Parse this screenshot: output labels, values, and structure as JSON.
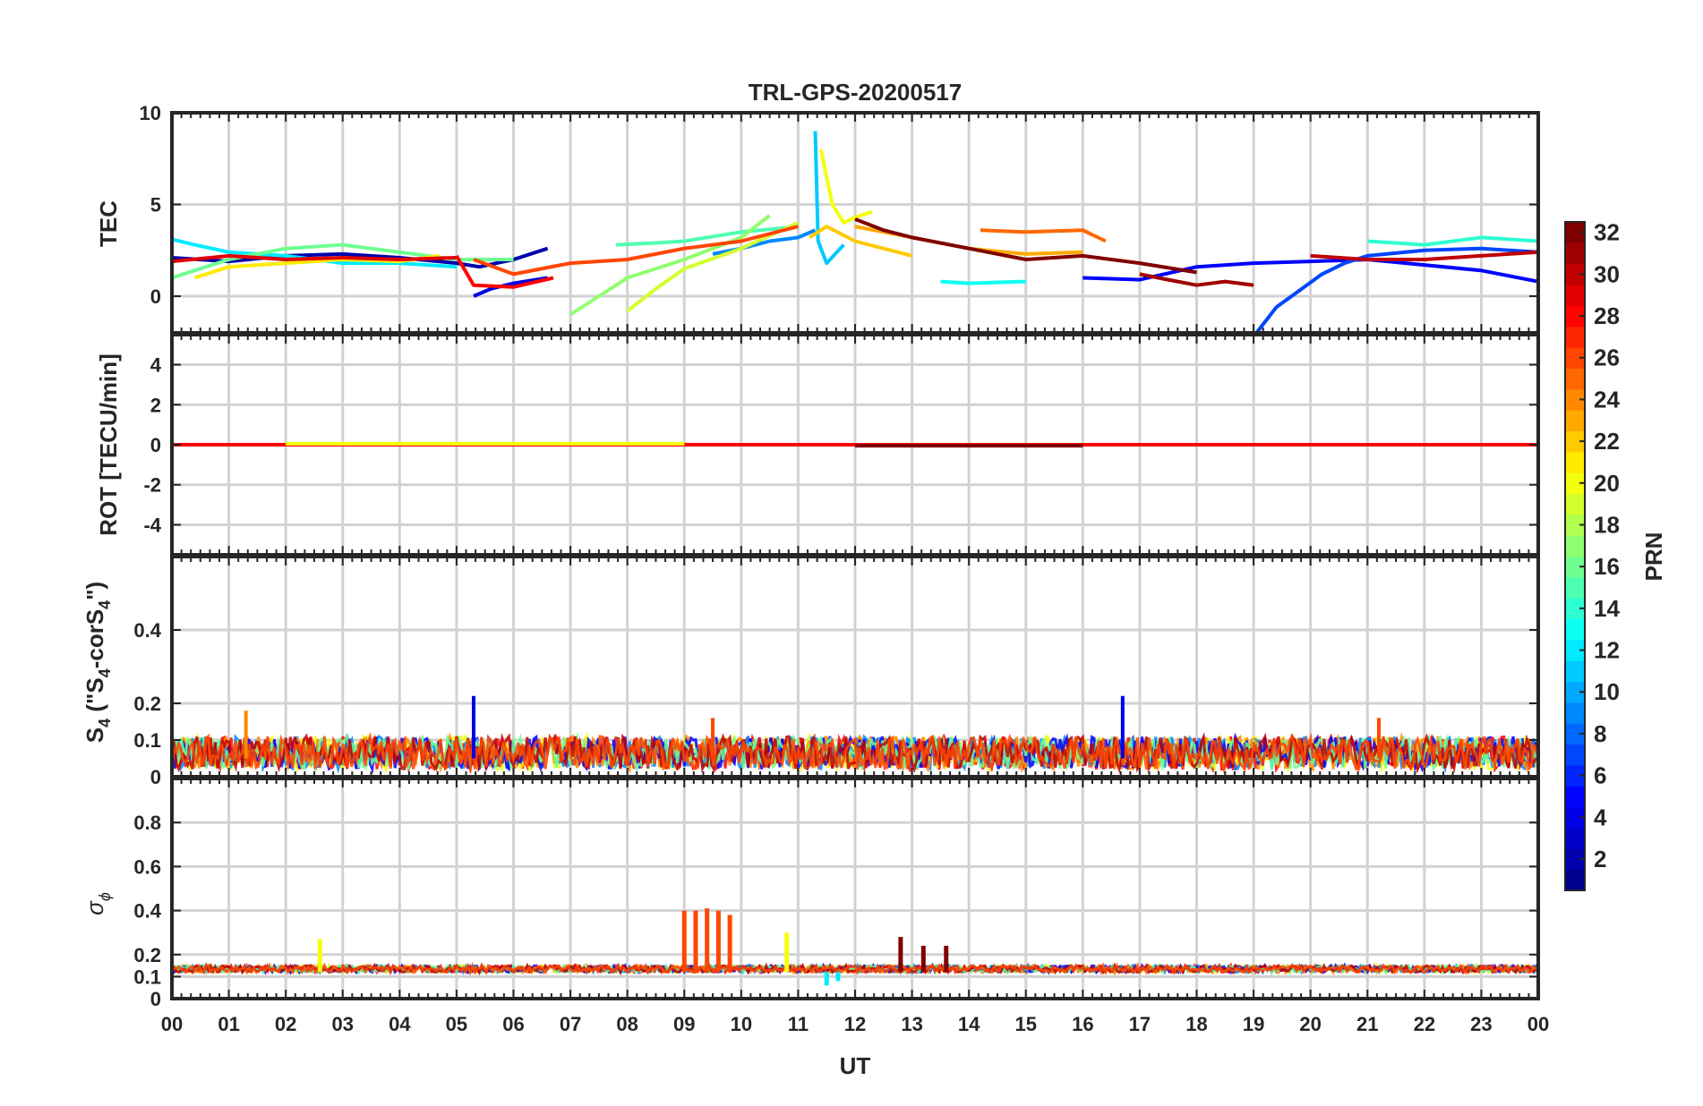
{
  "chart_data": {
    "type": "line",
    "title": "TRL-GPS-20200517",
    "xlabel": "UT",
    "x_tick_labels": [
      "00",
      "01",
      "02",
      "03",
      "04",
      "05",
      "06",
      "07",
      "08",
      "09",
      "10",
      "11",
      "12",
      "13",
      "14",
      "15",
      "16",
      "17",
      "18",
      "19",
      "20",
      "21",
      "22",
      "23",
      "00"
    ],
    "xlim": [
      0,
      24
    ],
    "colorbar": {
      "label": "PRN",
      "ticks": [
        2,
        4,
        6,
        8,
        10,
        12,
        14,
        16,
        18,
        20,
        22,
        24,
        26,
        28,
        30,
        32
      ],
      "tick_labels": [
        "2",
        "4",
        "6",
        "8",
        "10",
        "12",
        "14",
        "16",
        "18",
        "20",
        "22",
        "24",
        "26",
        "28",
        "30",
        "32"
      ],
      "range": [
        1,
        32
      ],
      "colormap": "jet",
      "colormap_stops": [
        "#00008f",
        "#0000ff",
        "#0080ff",
        "#00ffff",
        "#80ff80",
        "#ffff00",
        "#ff8000",
        "#ff0000",
        "#800000"
      ]
    },
    "panels": [
      {
        "id": "tec",
        "ylabel": "TEC",
        "ylim": [
          -2,
          10
        ],
        "yticks": [
          0,
          5,
          10
        ],
        "ytick_labels": [
          "0",
          "5",
          "10"
        ],
        "grid": true,
        "series": [
          {
            "prn": 2,
            "x": [
              0,
              1,
              2,
              3,
              4,
              5,
              5.4,
              6,
              6.6
            ],
            "y": [
              2.1,
              1.9,
              2.2,
              2.3,
              2.1,
              1.8,
              1.6,
              2.0,
              2.6
            ]
          },
          {
            "prn": 4,
            "x": [
              5.3,
              5.6,
              6.0,
              6.6
            ],
            "y": [
              0.0,
              0.4,
              0.7,
              1.0
            ]
          },
          {
            "prn": 5,
            "x": [
              16,
              17,
              18,
              19,
              20,
              21,
              22,
              23,
              24
            ],
            "y": [
              1.0,
              0.9,
              1.6,
              1.8,
              1.9,
              2.0,
              1.7,
              1.4,
              0.8
            ]
          },
          {
            "prn": 7,
            "x": [
              19.05,
              19.4,
              19.8,
              20.2,
              20.6,
              21,
              22,
              23,
              24
            ],
            "y": [
              -2.0,
              -0.6,
              0.3,
              1.2,
              1.8,
              2.2,
              2.5,
              2.6,
              2.4
            ]
          },
          {
            "prn": 9,
            "x": [
              9.5,
              10,
              10.5,
              11,
              11.3
            ],
            "y": [
              2.3,
              2.6,
              3.0,
              3.2,
              3.6
            ]
          },
          {
            "prn": 11,
            "x": [
              11.3,
              11.35,
              11.5,
              11.8
            ],
            "y": [
              9.0,
              3.0,
              1.8,
              2.8
            ]
          },
          {
            "prn": 12,
            "x": [
              0,
              0.4,
              1,
              2,
              3,
              4,
              5
            ],
            "y": [
              3.1,
              2.8,
              2.4,
              2.2,
              1.8,
              1.8,
              1.6
            ]
          },
          {
            "prn": 13,
            "x": [
              13.5,
              14,
              15
            ],
            "y": [
              0.8,
              0.7,
              0.8
            ]
          },
          {
            "prn": 14,
            "x": [
              21,
              22,
              23,
              24
            ],
            "y": [
              3.0,
              2.8,
              3.2,
              3.0
            ]
          },
          {
            "prn": 15,
            "x": [
              7.8,
              8.5,
              9,
              10,
              11
            ],
            "y": [
              2.8,
              2.9,
              3.0,
              3.5,
              3.8
            ]
          },
          {
            "prn": 16,
            "x": [
              0,
              1,
              2,
              3,
              4,
              5,
              6
            ],
            "y": [
              1.0,
              2.0,
              2.6,
              2.8,
              2.4,
              2.0,
              2.0
            ]
          },
          {
            "prn": 17,
            "x": [
              7,
              7.5,
              8,
              9,
              10,
              10.5
            ],
            "y": [
              -1.0,
              0.0,
              1.0,
              2.0,
              3.2,
              4.4
            ]
          },
          {
            "prn": 19,
            "x": [
              8,
              8.5,
              9,
              10,
              11
            ],
            "y": [
              -0.8,
              0.4,
              1.5,
              2.6,
              4.0
            ]
          },
          {
            "prn": 20,
            "x": [
              11.4,
              11.6,
              11.8,
              12,
              12.3
            ],
            "y": [
              8.0,
              5.0,
              4.0,
              4.3,
              4.6
            ]
          },
          {
            "prn": 21,
            "x": [
              0.4,
              1,
              2,
              3,
              4,
              4.7
            ],
            "y": [
              1.0,
              1.6,
              1.8,
              2.0,
              1.9,
              2.2
            ]
          },
          {
            "prn": 22,
            "x": [
              11.2,
              11.5,
              12,
              12.5,
              13
            ],
            "y": [
              3.2,
              3.8,
              3.0,
              2.6,
              2.2
            ]
          },
          {
            "prn": 23,
            "x": [
              12,
              13,
              14,
              15,
              16
            ],
            "y": [
              3.8,
              3.2,
              2.6,
              2.3,
              2.4
            ]
          },
          {
            "prn": 25,
            "x": [
              14.2,
              15,
              16,
              16.4
            ],
            "y": [
              3.6,
              3.5,
              3.6,
              3.0
            ]
          },
          {
            "prn": 26,
            "x": [
              5.3,
              6,
              7,
              8,
              9,
              10,
              11
            ],
            "y": [
              2.0,
              1.2,
              1.8,
              2.0,
              2.6,
              3.0,
              3.8
            ]
          },
          {
            "prn": 28,
            "x": [
              5.0,
              5.3,
              6,
              6.7
            ],
            "y": [
              2.2,
              0.6,
              0.5,
              1.0
            ]
          },
          {
            "prn": 29,
            "x": [
              0,
              1,
              2,
              3,
              4,
              5
            ],
            "y": [
              1.9,
              2.2,
              2.0,
              2.1,
              2.0,
              2.1
            ]
          },
          {
            "prn": 30,
            "x": [
              20,
              21,
              22,
              23,
              24
            ],
            "y": [
              2.2,
              2.0,
              2.0,
              2.2,
              2.4
            ]
          },
          {
            "prn": 31,
            "x": [
              17,
              17.5,
              18,
              18.5,
              19
            ],
            "y": [
              1.2,
              0.9,
              0.6,
              0.8,
              0.6
            ]
          },
          {
            "prn": 32,
            "x": [
              12,
              12.5,
              13,
              14,
              15,
              16,
              17,
              18
            ],
            "y": [
              4.2,
              3.6,
              3.2,
              2.6,
              2.0,
              2.2,
              1.8,
              1.3
            ]
          }
        ]
      },
      {
        "id": "rot",
        "ylabel": "ROT [TECU/min]",
        "ylim": [
          -5.5,
          5.5
        ],
        "yticks": [
          -4,
          -2,
          0,
          2,
          4
        ],
        "ytick_labels": [
          "-4",
          "-2",
          "0",
          "2",
          "4"
        ],
        "grid": true,
        "note": "near-zero rate of TEC for all PRNs",
        "series": [
          {
            "prn": 28,
            "x": [
              0,
              24
            ],
            "y": [
              0,
              0
            ]
          },
          {
            "prn": 20,
            "x": [
              2,
              9
            ],
            "y": [
              0.05,
              0.05
            ]
          },
          {
            "prn": 32,
            "x": [
              12,
              16
            ],
            "y": [
              -0.05,
              -0.05
            ]
          }
        ]
      },
      {
        "id": "s4",
        "ylabel_parts": {
          "main": "S",
          "sub": "4",
          "paren_open": " (\"S",
          "sub2": "4",
          "mid": "-corS",
          "sub3": "4",
          "paren_close": "\")"
        },
        "ylim": [
          0,
          0.6
        ],
        "yticks": [
          0,
          0.1,
          0.2,
          0.4
        ],
        "ytick_labels": [
          "0",
          "0.1",
          "0.2",
          "0.4"
        ],
        "grid": true,
        "typical_range": [
          0,
          0.1
        ],
        "series": [
          {
            "prn": 4,
            "x": [
              5.3,
              16.7
            ],
            "y": [
              0.22,
              0.22
            ]
          },
          {
            "prn": 24,
            "x": [
              1.3
            ],
            "y": [
              0.18
            ]
          },
          {
            "prn": 26,
            "x": [
              9.5,
              21.2
            ],
            "y": [
              0.16,
              0.16
            ]
          }
        ]
      },
      {
        "id": "sigma",
        "ylabel_symbol": "σ",
        "ylabel_sub": "ϕ",
        "ylim": [
          0,
          1.0
        ],
        "yticks": [
          0,
          0.1,
          0.2,
          0.4,
          0.6,
          0.8
        ],
        "ytick_labels": [
          "0",
          "0.1",
          "0.2",
          "0.4",
          "0.6",
          "0.8"
        ],
        "grid": true,
        "baseline": 0.12,
        "series": [
          {
            "prn": 26,
            "x": [
              9.0,
              9.2,
              9.4,
              9.6,
              9.8
            ],
            "y": [
              0.4,
              0.4,
              0.41,
              0.4,
              0.38
            ]
          },
          {
            "prn": 32,
            "x": [
              12.8,
              13.2,
              13.6
            ],
            "y": [
              0.28,
              0.24,
              0.24
            ]
          },
          {
            "prn": 20,
            "x": [
              2.6,
              10.8
            ],
            "y": [
              0.27,
              0.3
            ]
          },
          {
            "prn": 12,
            "x": [
              11.5,
              11.7
            ],
            "y": [
              0.06,
              0.08
            ]
          }
        ]
      }
    ]
  }
}
